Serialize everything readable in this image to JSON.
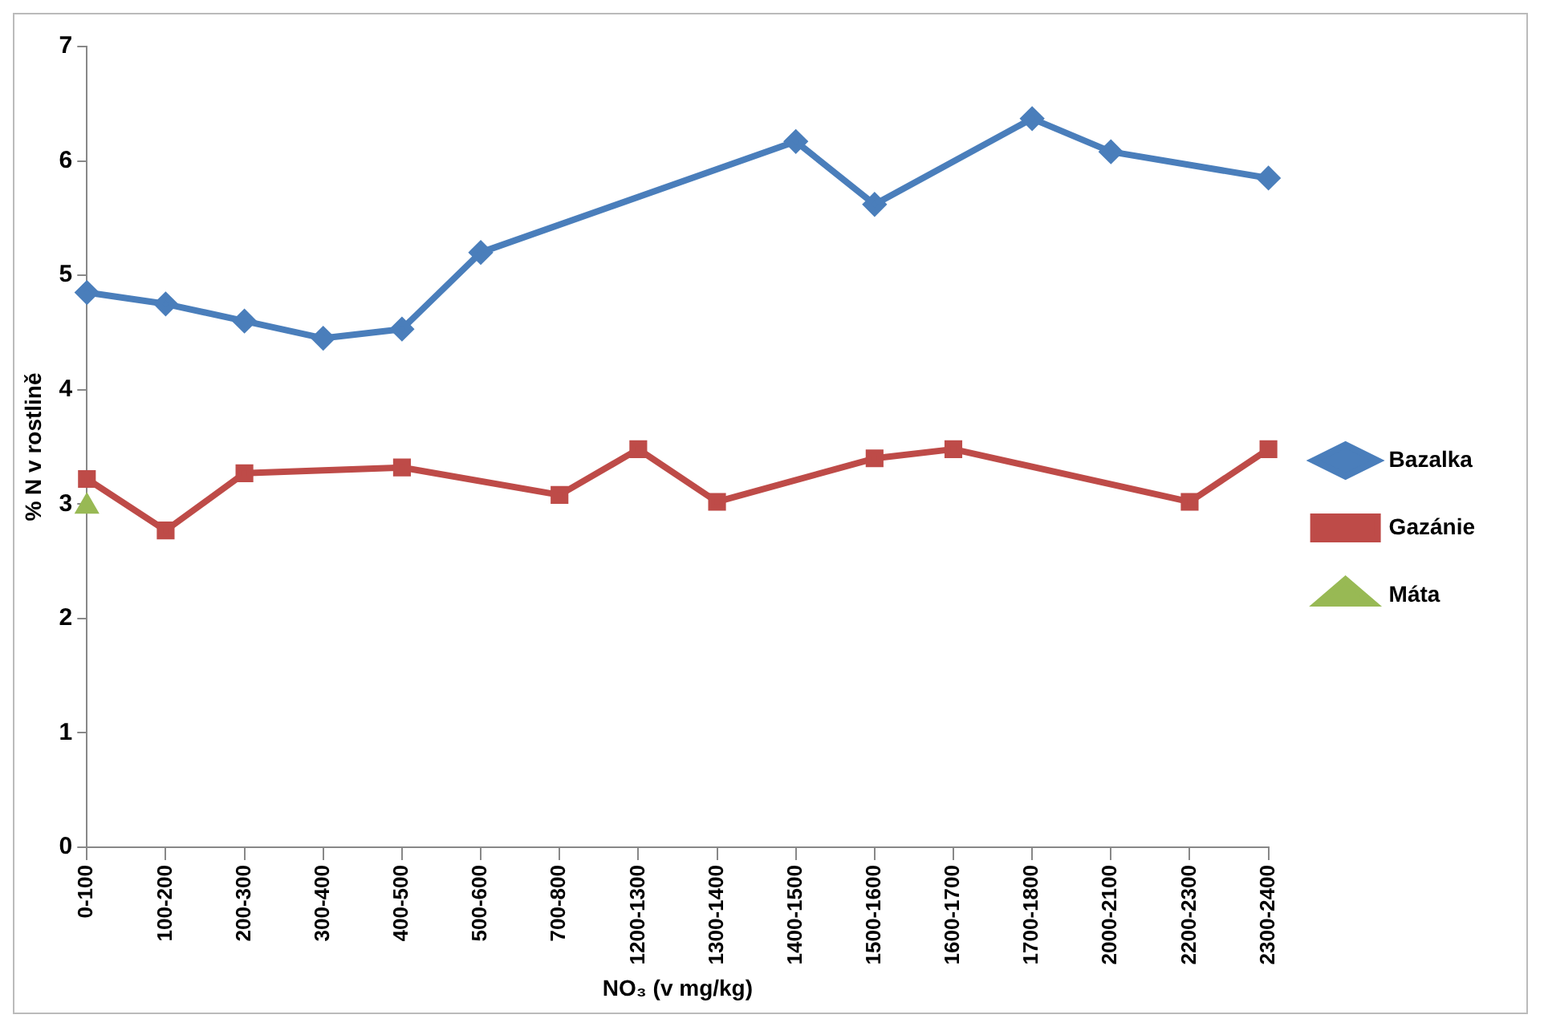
{
  "chart_data": {
    "type": "line",
    "xlabel": "NO₃ (v mg/kg)",
    "ylabel": "% N v rostlině",
    "categories": [
      "0-100",
      "100-200",
      "200-300",
      "300-400",
      "400-500",
      "500-600",
      "700-800",
      "1200-1300",
      "1300-1400",
      "1400-1500",
      "1500-1600",
      "1600-1700",
      "1700-1800",
      "2000-2100",
      "2200-2300",
      "2300-2400"
    ],
    "series": [
      {
        "name": "Bazalka",
        "color": "#4a7ebb",
        "marker": "diamond",
        "values": [
          4.85,
          4.75,
          4.6,
          4.45,
          4.53,
          5.2,
          null,
          null,
          null,
          6.17,
          5.62,
          null,
          6.37,
          6.08,
          null,
          5.85
        ]
      },
      {
        "name": "Gazánie",
        "color": "#be4b48",
        "marker": "square",
        "values": [
          3.22,
          2.77,
          3.27,
          null,
          3.32,
          null,
          3.08,
          3.48,
          3.02,
          null,
          3.4,
          3.48,
          null,
          null,
          3.02,
          3.48
        ]
      },
      {
        "name": "Máta",
        "color": "#98b954",
        "marker": "triangle",
        "values": [
          2.98,
          null,
          null,
          null,
          null,
          null,
          null,
          null,
          null,
          null,
          null,
          null,
          null,
          null,
          null,
          null
        ]
      }
    ],
    "ylim": [
      0,
      7
    ],
    "yticks": [
      0,
      1,
      2,
      3,
      4,
      5,
      6,
      7
    ],
    "grid": false,
    "legend": "right",
    "line_style": "solid"
  }
}
